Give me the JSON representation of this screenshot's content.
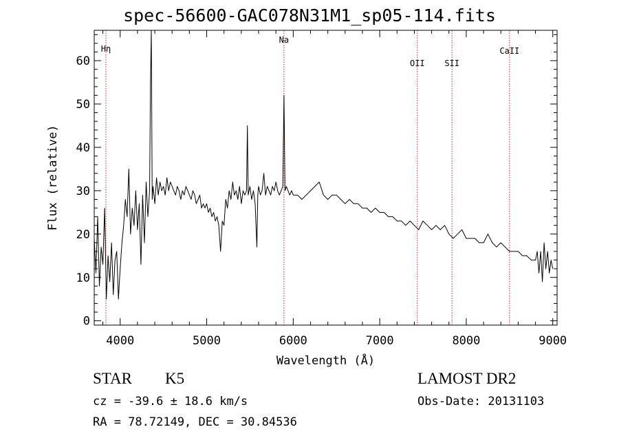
{
  "header": {
    "title": "spec-56600-GAC078N31M1_sp05-114.fits"
  },
  "info": {
    "object_type": "STAR",
    "subclass": "K5",
    "survey": "LAMOST DR2",
    "cz_text": "cz = -39.6 ± 18.6 km/s",
    "obs_date": "Obs-Date: 20131103",
    "radec_text": "RA =  78.72149, DEC =  30.84536"
  },
  "chart_data": {
    "type": "line",
    "title": "spec-56600-GAC078N31M1_sp05-114.fits",
    "xlabel": "Wavelength (Å)",
    "ylabel": "Flux (relative)",
    "xlim": [
      3700,
      9050
    ],
    "ylim": [
      -1,
      67
    ],
    "xticks": [
      4000,
      5000,
      6000,
      7000,
      8000,
      9000
    ],
    "yticks": [
      0,
      10,
      20,
      30,
      40,
      50,
      60
    ],
    "grid": false,
    "line_color": "#000000",
    "marker_color": "#cc2222",
    "lines": [
      {
        "label": "Hη",
        "x": 3835
      },
      {
        "label": "Na",
        "x": 5893
      },
      {
        "label": "OII",
        "x": 7435
      },
      {
        "label": "SII",
        "x": 7835
      },
      {
        "label": "CaII",
        "x": 8500
      }
    ],
    "series": [
      {
        "x": [
          3700,
          3720,
          3740,
          3760,
          3780,
          3800,
          3820,
          3840,
          3860,
          3880,
          3900,
          3920,
          3940,
          3960,
          3980,
          4000,
          4020,
          4040,
          4060,
          4080,
          4100,
          4120,
          4140,
          4160,
          4180,
          4200,
          4220,
          4240,
          4260,
          4280,
          4300,
          4320,
          4340,
          4350,
          4360,
          4370,
          4380,
          4400,
          4420,
          4440,
          4460,
          4480,
          4500,
          4520,
          4540,
          4560,
          4580,
          4600,
          4620,
          4640,
          4660,
          4680,
          4700,
          4720,
          4740,
          4760,
          4780,
          4800,
          4820,
          4840,
          4861,
          4880,
          4900,
          4920,
          4940,
          4960,
          4980,
          5000,
          5020,
          5040,
          5060,
          5080,
          5100,
          5120,
          5140,
          5160,
          5180,
          5200,
          5220,
          5240,
          5260,
          5280,
          5300,
          5320,
          5340,
          5360,
          5380,
          5400,
          5420,
          5440,
          5460,
          5470,
          5480,
          5500,
          5520,
          5540,
          5560,
          5580,
          5590,
          5600,
          5620,
          5640,
          5660,
          5680,
          5700,
          5720,
          5740,
          5760,
          5780,
          5800,
          5820,
          5840,
          5860,
          5880,
          5893,
          5905,
          5920,
          5940,
          5960,
          5980,
          6000,
          6050,
          6100,
          6150,
          6200,
          6250,
          6300,
          6350,
          6400,
          6450,
          6500,
          6550,
          6600,
          6650,
          6700,
          6750,
          6800,
          6850,
          6900,
          6950,
          7000,
          7050,
          7100,
          7150,
          7200,
          7250,
          7300,
          7350,
          7400,
          7450,
          7500,
          7550,
          7600,
          7650,
          7700,
          7750,
          7800,
          7850,
          7900,
          7950,
          8000,
          8050,
          8100,
          8150,
          8200,
          8250,
          8300,
          8350,
          8400,
          8450,
          8500,
          8550,
          8600,
          8650,
          8700,
          8750,
          8800,
          8820,
          8840,
          8860,
          8880,
          8900,
          8920,
          8940,
          8960,
          8980,
          9000
        ],
        "y": [
          19,
          11,
          24,
          8,
          17,
          13,
          26,
          5,
          15,
          9,
          18,
          6,
          14,
          16,
          5,
          12,
          18,
          22,
          28,
          24,
          35,
          20,
          26,
          22,
          30,
          21,
          27,
          13,
          29,
          18,
          32,
          24,
          30,
          55,
          67,
          28,
          31,
          27,
          33,
          29,
          32,
          30,
          31,
          29,
          33,
          30,
          32,
          31,
          30,
          29,
          31,
          30,
          28,
          30,
          29,
          31,
          30,
          29,
          28,
          30,
          29,
          27,
          28,
          29,
          26,
          27,
          26,
          27,
          25,
          26,
          24,
          25,
          23,
          24,
          22,
          16,
          23,
          22,
          28,
          26,
          30,
          28,
          32,
          29,
          30,
          28,
          31,
          27,
          30,
          29,
          30,
          45,
          29,
          31,
          28,
          30,
          27,
          17,
          29,
          31,
          29,
          30,
          34,
          29,
          31,
          30,
          29,
          31,
          30,
          32,
          30,
          29,
          30,
          31,
          52,
          30,
          31,
          30,
          29,
          30,
          29,
          29,
          28,
          29,
          30,
          31,
          32,
          29,
          28,
          29,
          29,
          28,
          27,
          28,
          27,
          27,
          26,
          26,
          25,
          26,
          25,
          25,
          24,
          24,
          23,
          23,
          22,
          23,
          22,
          21,
          23,
          22,
          21,
          22,
          21,
          22,
          20,
          19,
          20,
          21,
          19,
          19,
          19,
          18,
          18,
          20,
          18,
          17,
          18,
          17,
          16,
          16,
          16,
          15,
          15,
          14,
          14,
          16,
          11,
          16,
          9,
          18,
          12,
          16,
          11,
          14,
          12
        ]
      }
    ]
  }
}
